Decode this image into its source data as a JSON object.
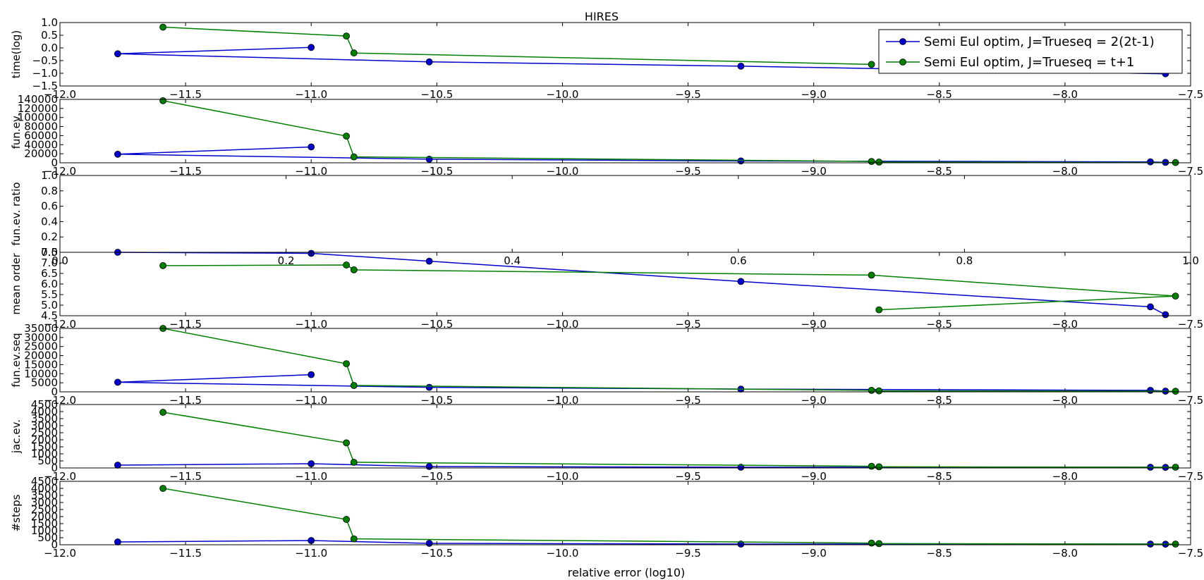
{
  "figure": {
    "title": "HIRES",
    "xlabel": "relative error (log10)"
  },
  "legend": {
    "placement": "top-right",
    "entries": [
      "Semi Eul optim, J=Trueseq = 2(2t-1)",
      "Semi Eul optim, J=Trueseq = t+1"
    ]
  },
  "colors": {
    "series_0": "#0000cc",
    "series_1": "#007f00"
  },
  "chart_data": [
    {
      "type": "line",
      "ylabel": "time(log)",
      "xlim": [
        -12.0,
        -7.5
      ],
      "ylim": [
        -1.5,
        1.0
      ],
      "xticks": [
        "−12.0",
        "−11.5",
        "−11.0",
        "−10.5",
        "−10.0",
        "−9.5",
        "−9.0",
        "−8.5",
        "−8.0",
        "−7.5"
      ],
      "yticks": [
        "1.0",
        "0.5",
        "0.0",
        "−0.5",
        "−1.0",
        "−1.5"
      ],
      "series": [
        {
          "name": "Semi Eul optim, J=Trueseq = 2(2t-1)",
          "x": [
            -11.0,
            -11.77,
            -10.53,
            -9.29,
            -7.6
          ],
          "y": [
            0.02,
            -0.23,
            -0.55,
            -0.72,
            -1.02
          ]
        },
        {
          "name": "Semi Eul optim, J=Trueseq = t+1",
          "x": [
            -11.59,
            -10.86,
            -10.83,
            -8.77
          ],
          "y": [
            0.82,
            0.47,
            -0.2,
            -0.65
          ]
        }
      ]
    },
    {
      "type": "line",
      "ylabel": "fun.ev.",
      "xlim": [
        -12.0,
        -7.5
      ],
      "ylim": [
        0,
        140000
      ],
      "xticks": [
        "−12.0",
        "−11.5",
        "−11.0",
        "−10.5",
        "−10.0",
        "−9.5",
        "−9.0",
        "−8.5",
        "−8.0",
        "−7.5"
      ],
      "yticks": [
        "140000",
        "120000",
        "100000",
        "80000",
        "60000",
        "40000",
        "20000",
        "0"
      ],
      "series": [
        {
          "name": "Semi Eul optim, J=Trueseq = 2(2t-1)",
          "x": [
            -11.0,
            -11.77,
            -10.53,
            -9.29,
            -7.66,
            -7.6
          ],
          "y": [
            35000,
            19000,
            8000,
            4000,
            2000,
            1000
          ]
        },
        {
          "name": "Semi Eul optim, J=Trueseq = t+1",
          "x": [
            -11.59,
            -10.86,
            -10.83,
            -8.77,
            -8.74,
            -7.56
          ],
          "y": [
            137000,
            59000,
            13000,
            3000,
            1500,
            500
          ]
        }
      ]
    },
    {
      "type": "line",
      "ylabel": "fun.ev. ratio",
      "xlim": [
        0.0,
        1.0
      ],
      "ylim": [
        0.0,
        1.0
      ],
      "xticks": [
        "0.0",
        "0.2",
        "0.4",
        "0.6",
        "0.8",
        "1.0"
      ],
      "yticks": [
        "1.0",
        "0.8",
        "0.6",
        "0.4",
        "0.2",
        "0.0"
      ],
      "series": []
    },
    {
      "type": "line",
      "ylabel": "mean order",
      "xlim": [
        -12.0,
        -7.5
      ],
      "ylim": [
        4.5,
        7.5
      ],
      "xticks": [
        "−12.0",
        "−11.5",
        "−11.0",
        "−10.5",
        "−10.0",
        "−9.5",
        "−9.0",
        "−8.5",
        "−8.0",
        "−7.5"
      ],
      "yticks": [
        "7.5",
        "7.0",
        "6.5",
        "6.0",
        "5.5",
        "5.0",
        "4.5"
      ],
      "series": [
        {
          "name": "Semi Eul optim, J=Trueseq = 2(2t-1)",
          "x": [
            -11.77,
            -11.0,
            -10.53,
            -9.29,
            -7.66,
            -7.6
          ],
          "y": [
            7.5,
            7.45,
            7.08,
            6.12,
            4.92,
            4.55
          ]
        },
        {
          "name": "Semi Eul optim, J=Trueseq = t+1",
          "x": [
            -11.59,
            -10.86,
            -10.83,
            -8.77,
            -7.56,
            -8.74
          ],
          "y": [
            6.87,
            6.9,
            6.67,
            6.42,
            5.43,
            4.78
          ]
        }
      ]
    },
    {
      "type": "line",
      "ylabel": "fun.ev.seq",
      "xlim": [
        -12.0,
        -7.5
      ],
      "ylim": [
        0,
        35000
      ],
      "xticks": [
        "−12.0",
        "−11.5",
        "−11.0",
        "−10.5",
        "−10.0",
        "−9.5",
        "−9.0",
        "−8.5",
        "−8.0",
        "−7.5"
      ],
      "yticks": [
        "35000",
        "30000",
        "25000",
        "20000",
        "15000",
        "10000",
        "5000",
        "0"
      ],
      "series": [
        {
          "name": "Semi Eul optim, J=Trueseq = 2(2t-1)",
          "x": [
            -11.0,
            -11.77,
            -10.53,
            -9.29,
            -7.66,
            -7.6
          ],
          "y": [
            9500,
            5300,
            2500,
            1500,
            800,
            400
          ]
        },
        {
          "name": "Semi Eul optim, J=Trueseq = t+1",
          "x": [
            -11.59,
            -10.86,
            -10.83,
            -8.77,
            -8.74,
            -7.56
          ],
          "y": [
            35000,
            15500,
            3500,
            800,
            500,
            300
          ]
        }
      ]
    },
    {
      "type": "line",
      "ylabel": "jac.ev.",
      "xlim": [
        -12.0,
        -7.5
      ],
      "ylim": [
        0,
        4500
      ],
      "xticks": [
        "−12.0",
        "−11.5",
        "−11.0",
        "−10.5",
        "−10.0",
        "−9.5",
        "−9.0",
        "−8.5",
        "−8.0",
        "−7.5"
      ],
      "yticks": [
        "4500",
        "4000",
        "3500",
        "3000",
        "2500",
        "2000",
        "1500",
        "1000",
        "500",
        "0"
      ],
      "series": [
        {
          "name": "Semi Eul optim, J=Trueseq = 2(2t-1)",
          "x": [
            -11.77,
            -11.0,
            -10.53,
            -9.29,
            -7.66,
            -7.6
          ],
          "y": [
            200,
            300,
            100,
            50,
            50,
            40
          ]
        },
        {
          "name": "Semi Eul optim, J=Trueseq = t+1",
          "x": [
            -11.59,
            -10.86,
            -10.83,
            -8.77,
            -8.74,
            -7.56
          ],
          "y": [
            3950,
            1780,
            400,
            120,
            80,
            50
          ]
        }
      ]
    },
    {
      "type": "line",
      "ylabel": "#steps",
      "xlim": [
        -12.0,
        -7.5
      ],
      "ylim": [
        0,
        4500
      ],
      "xticks": [
        "−12.0",
        "−11.5",
        "−11.0",
        "−10.5",
        "−10.0",
        "−9.5",
        "−9.0",
        "−8.5",
        "−8.0",
        "−7.5"
      ],
      "yticks": [
        "4500",
        "4000",
        "3500",
        "3000",
        "2500",
        "2000",
        "1500",
        "1000",
        "500",
        "0"
      ],
      "series": [
        {
          "name": "Semi Eul optim, J=Trueseq = 2(2t-1)",
          "x": [
            -11.77,
            -11.0,
            -10.53,
            -9.29,
            -7.66,
            -7.6
          ],
          "y": [
            200,
            300,
            100,
            50,
            50,
            40
          ]
        },
        {
          "name": "Semi Eul optim, J=Trueseq = t+1",
          "x": [
            -11.59,
            -10.86,
            -10.83,
            -8.77,
            -8.74,
            -7.56
          ],
          "y": [
            4000,
            1800,
            420,
            120,
            80,
            50
          ]
        }
      ]
    }
  ]
}
